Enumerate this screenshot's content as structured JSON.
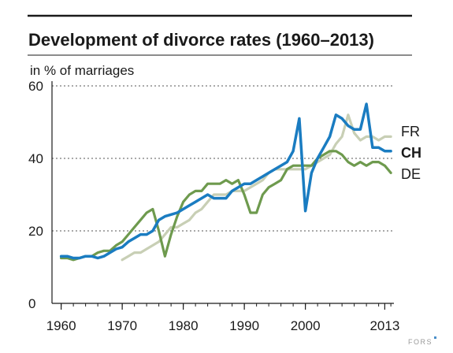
{
  "chart_data": {
    "type": "line",
    "title": "Development of divorce rates (1960–2013)",
    "unit_label": "in % of marriages",
    "ylim": [
      0,
      60
    ],
    "xlim": [
      1958.5,
      2014.5
    ],
    "y_ticks": [
      0,
      20,
      40,
      60
    ],
    "x_tick_labels": [
      "1960",
      "1970",
      "1980",
      "1990",
      "2000",
      "2013"
    ],
    "x_tick_values": [
      1960,
      1970,
      1980,
      1990,
      2000,
      2013
    ],
    "grid": "dashed horizontal at 20, 40, 60",
    "legend_placement": "right, at line ends",
    "source_logo": "FORS",
    "series": [
      {
        "name": "FR",
        "color": "#c8cfb5",
        "emphasis": false,
        "x": [
          1970,
          1971,
          1972,
          1973,
          1974,
          1975,
          1976,
          1977,
          1978,
          1979,
          1980,
          1981,
          1982,
          1983,
          1984,
          1985,
          1986,
          1987,
          1988,
          1989,
          1990,
          1991,
          1992,
          1993,
          1994,
          1995,
          1996,
          1997,
          1998,
          1999,
          2000,
          2001,
          2002,
          2003,
          2004,
          2005,
          2006,
          2007,
          2008,
          2009,
          2010,
          2011,
          2012,
          2013,
          2014
        ],
        "y": [
          12,
          13,
          14,
          14,
          15,
          16,
          17,
          19,
          21,
          21,
          22,
          23,
          25,
          26,
          28,
          30,
          30,
          30,
          31,
          31,
          31,
          32,
          33,
          34,
          36,
          37,
          37,
          37,
          37,
          37,
          37,
          38,
          39,
          40,
          41,
          44,
          46,
          52,
          47,
          45,
          46,
          46,
          45,
          46,
          46
        ]
      },
      {
        "name": "DE",
        "color": "#6e9a4e",
        "emphasis": false,
        "x": [
          1960,
          1961,
          1962,
          1963,
          1964,
          1965,
          1966,
          1967,
          1968,
          1969,
          1970,
          1971,
          1972,
          1973,
          1974,
          1975,
          1976,
          1977,
          1978,
          1979,
          1980,
          1981,
          1982,
          1983,
          1984,
          1985,
          1986,
          1987,
          1988,
          1989,
          1990,
          1991,
          1992,
          1993,
          1994,
          1995,
          1996,
          1997,
          1998,
          1999,
          2000,
          2001,
          2002,
          2003,
          2004,
          2005,
          2006,
          2007,
          2008,
          2009,
          2010,
          2011,
          2012,
          2013,
          2014
        ],
        "y": [
          12.5,
          12.5,
          12,
          12.5,
          13,
          13,
          14,
          14.5,
          14.5,
          16,
          17,
          19,
          21,
          23,
          25,
          26,
          20,
          13,
          19,
          24,
          28,
          30,
          31,
          31,
          33,
          33,
          33,
          34,
          33,
          34,
          30,
          25,
          25,
          30,
          32,
          33,
          34,
          37,
          38,
          38,
          38,
          38,
          40,
          41,
          42,
          42,
          41,
          39,
          38,
          39,
          38,
          39,
          39,
          38,
          36
        ]
      },
      {
        "name": "CH",
        "color": "#1a7cc1",
        "emphasis": true,
        "x": [
          1960,
          1961,
          1962,
          1963,
          1964,
          1965,
          1966,
          1967,
          1968,
          1969,
          1970,
          1971,
          1972,
          1973,
          1974,
          1975,
          1976,
          1977,
          1978,
          1979,
          1980,
          1981,
          1982,
          1983,
          1984,
          1985,
          1986,
          1987,
          1988,
          1989,
          1990,
          1991,
          1992,
          1993,
          1994,
          1995,
          1996,
          1997,
          1998,
          1999,
          2000,
          2001,
          2002,
          2003,
          2004,
          2005,
          2006,
          2007,
          2008,
          2009,
          2010,
          2011,
          2012,
          2013,
          2014
        ],
        "y": [
          13,
          13,
          12.5,
          12.5,
          13,
          13,
          12.5,
          13,
          14,
          15,
          15.5,
          17,
          18,
          19,
          19,
          20,
          23,
          24,
          24.5,
          25,
          26,
          27,
          28,
          29,
          30,
          29,
          29,
          29,
          31,
          32,
          33,
          33,
          34,
          35,
          36,
          37,
          38,
          39,
          42,
          51,
          25.5,
          36,
          40,
          43,
          46,
          52,
          51,
          49,
          48,
          48,
          55,
          43,
          43,
          42,
          42
        ]
      }
    ]
  }
}
